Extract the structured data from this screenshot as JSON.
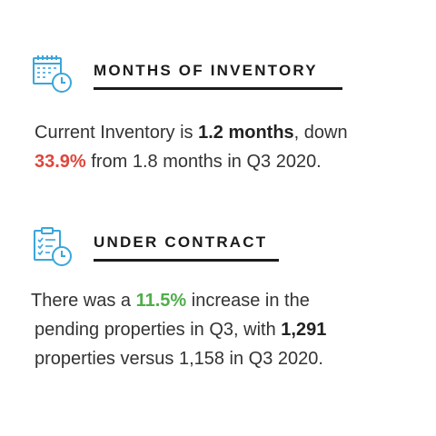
{
  "colors": {
    "icon_blue": "#39a6dc",
    "highlight_red": "#e0463b",
    "highlight_green": "#4fae4a",
    "text_dark": "#1b1b1b"
  },
  "sections": [
    {
      "icon": "calendar-clock-icon",
      "heading": "MONTHS OF INVENTORY",
      "paragraph": {
        "line1_a": "Current Inventory is ",
        "line1_b": "1.2 months",
        "line1_c": ", down",
        "line2_a": "33.9%",
        "line2_b": " from 1.8 months in Q3 2020."
      }
    },
    {
      "icon": "clipboard-clock-icon",
      "heading": "UNDER CONTRACT",
      "paragraph": {
        "line1_a": "There was a ",
        "line1_b": "11.5%",
        "line1_c": " increase in the",
        "line2_a": "pending properties in Q3, with ",
        "line2_b": "1,291",
        "line3": "properties versus 1,158 in Q3 2020."
      }
    }
  ]
}
